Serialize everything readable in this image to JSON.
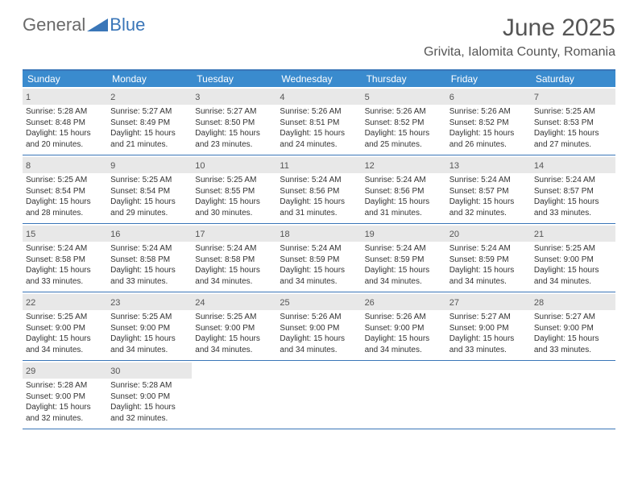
{
  "brand": {
    "part1": "General",
    "part2": "Blue"
  },
  "title": "June 2025",
  "location": "Grivita, Ialomita County, Romania",
  "colors": {
    "header_bg": "#3a8bce",
    "border": "#3a76b8",
    "daynum_bg": "#e8e8e8",
    "text": "#333333",
    "title_text": "#555555",
    "brand_gray": "#6a6a6a",
    "brand_blue": "#3a76b8"
  },
  "day_names": [
    "Sunday",
    "Monday",
    "Tuesday",
    "Wednesday",
    "Thursday",
    "Friday",
    "Saturday"
  ],
  "weeks": [
    [
      {
        "n": "1",
        "sunrise": "5:28 AM",
        "sunset": "8:48 PM",
        "day_h": "15",
        "day_m": "20"
      },
      {
        "n": "2",
        "sunrise": "5:27 AM",
        "sunset": "8:49 PM",
        "day_h": "15",
        "day_m": "21"
      },
      {
        "n": "3",
        "sunrise": "5:27 AM",
        "sunset": "8:50 PM",
        "day_h": "15",
        "day_m": "23"
      },
      {
        "n": "4",
        "sunrise": "5:26 AM",
        "sunset": "8:51 PM",
        "day_h": "15",
        "day_m": "24"
      },
      {
        "n": "5",
        "sunrise": "5:26 AM",
        "sunset": "8:52 PM",
        "day_h": "15",
        "day_m": "25"
      },
      {
        "n": "6",
        "sunrise": "5:26 AM",
        "sunset": "8:52 PM",
        "day_h": "15",
        "day_m": "26"
      },
      {
        "n": "7",
        "sunrise": "5:25 AM",
        "sunset": "8:53 PM",
        "day_h": "15",
        "day_m": "27"
      }
    ],
    [
      {
        "n": "8",
        "sunrise": "5:25 AM",
        "sunset": "8:54 PM",
        "day_h": "15",
        "day_m": "28"
      },
      {
        "n": "9",
        "sunrise": "5:25 AM",
        "sunset": "8:54 PM",
        "day_h": "15",
        "day_m": "29"
      },
      {
        "n": "10",
        "sunrise": "5:25 AM",
        "sunset": "8:55 PM",
        "day_h": "15",
        "day_m": "30"
      },
      {
        "n": "11",
        "sunrise": "5:24 AM",
        "sunset": "8:56 PM",
        "day_h": "15",
        "day_m": "31"
      },
      {
        "n": "12",
        "sunrise": "5:24 AM",
        "sunset": "8:56 PM",
        "day_h": "15",
        "day_m": "31"
      },
      {
        "n": "13",
        "sunrise": "5:24 AM",
        "sunset": "8:57 PM",
        "day_h": "15",
        "day_m": "32"
      },
      {
        "n": "14",
        "sunrise": "5:24 AM",
        "sunset": "8:57 PM",
        "day_h": "15",
        "day_m": "33"
      }
    ],
    [
      {
        "n": "15",
        "sunrise": "5:24 AM",
        "sunset": "8:58 PM",
        "day_h": "15",
        "day_m": "33"
      },
      {
        "n": "16",
        "sunrise": "5:24 AM",
        "sunset": "8:58 PM",
        "day_h": "15",
        "day_m": "33"
      },
      {
        "n": "17",
        "sunrise": "5:24 AM",
        "sunset": "8:58 PM",
        "day_h": "15",
        "day_m": "34"
      },
      {
        "n": "18",
        "sunrise": "5:24 AM",
        "sunset": "8:59 PM",
        "day_h": "15",
        "day_m": "34"
      },
      {
        "n": "19",
        "sunrise": "5:24 AM",
        "sunset": "8:59 PM",
        "day_h": "15",
        "day_m": "34"
      },
      {
        "n": "20",
        "sunrise": "5:24 AM",
        "sunset": "8:59 PM",
        "day_h": "15",
        "day_m": "34"
      },
      {
        "n": "21",
        "sunrise": "5:25 AM",
        "sunset": "9:00 PM",
        "day_h": "15",
        "day_m": "34"
      }
    ],
    [
      {
        "n": "22",
        "sunrise": "5:25 AM",
        "sunset": "9:00 PM",
        "day_h": "15",
        "day_m": "34"
      },
      {
        "n": "23",
        "sunrise": "5:25 AM",
        "sunset": "9:00 PM",
        "day_h": "15",
        "day_m": "34"
      },
      {
        "n": "24",
        "sunrise": "5:25 AM",
        "sunset": "9:00 PM",
        "day_h": "15",
        "day_m": "34"
      },
      {
        "n": "25",
        "sunrise": "5:26 AM",
        "sunset": "9:00 PM",
        "day_h": "15",
        "day_m": "34"
      },
      {
        "n": "26",
        "sunrise": "5:26 AM",
        "sunset": "9:00 PM",
        "day_h": "15",
        "day_m": "34"
      },
      {
        "n": "27",
        "sunrise": "5:27 AM",
        "sunset": "9:00 PM",
        "day_h": "15",
        "day_m": "33"
      },
      {
        "n": "28",
        "sunrise": "5:27 AM",
        "sunset": "9:00 PM",
        "day_h": "15",
        "day_m": "33"
      }
    ],
    [
      {
        "n": "29",
        "sunrise": "5:28 AM",
        "sunset": "9:00 PM",
        "day_h": "15",
        "day_m": "32"
      },
      {
        "n": "30",
        "sunrise": "5:28 AM",
        "sunset": "9:00 PM",
        "day_h": "15",
        "day_m": "32"
      },
      null,
      null,
      null,
      null,
      null
    ]
  ],
  "labels": {
    "sunrise": "Sunrise:",
    "sunset": "Sunset:",
    "daylight": "Daylight:",
    "hours": "hours",
    "and": "and",
    "minutes": "minutes."
  }
}
